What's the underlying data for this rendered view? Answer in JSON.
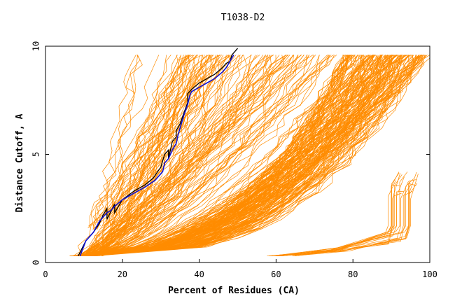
{
  "chart_data": {
    "type": "line",
    "title": "T1038-D2",
    "xlabel": "Percent of Residues (CA)",
    "ylabel": "Distance Cutoff, A",
    "xlim": [
      0,
      100
    ],
    "ylim": [
      0,
      10
    ],
    "xticks": [
      0,
      20,
      40,
      60,
      80,
      100
    ],
    "yticks": [
      0,
      5,
      10
    ],
    "grid": false,
    "colors": {
      "models": "#ff8c00",
      "highlight_a": "#000000",
      "highlight_b": "#1010d0",
      "frame": "#000000"
    },
    "highlighted_series": [
      {
        "x": [
          8.5,
          10.5,
          12.5,
          14,
          15,
          16,
          16,
          18,
          18,
          20,
          23,
          26,
          28,
          30,
          30.5,
          31,
          32,
          32,
          33,
          34,
          34,
          35,
          36,
          37,
          37,
          38,
          40,
          42,
          44,
          46,
          47,
          48,
          48.5,
          50
        ],
        "y": [
          0.3,
          1.0,
          1.4,
          1.8,
          2.2,
          2.5,
          2.0,
          2.7,
          2.3,
          2.9,
          3.3,
          3.6,
          3.9,
          4.4,
          4.7,
          5.0,
          5.2,
          4.8,
          5.6,
          5.8,
          6.1,
          6.4,
          6.9,
          7.4,
          7.8,
          8.0,
          8.3,
          8.5,
          8.7,
          9.0,
          9.2,
          9.3,
          9.6,
          9.9
        ]
      },
      {
        "x": [
          9,
          10.5,
          12.5,
          14,
          15,
          16,
          17,
          18,
          20,
          23,
          26,
          28.5,
          30.5,
          31,
          32,
          33,
          34,
          34.5,
          35,
          36,
          37,
          37.5,
          38,
          40,
          42,
          44,
          46,
          47,
          48,
          49
        ],
        "y": [
          0.3,
          1.0,
          1.4,
          1.9,
          2.1,
          2.3,
          2.4,
          2.6,
          2.9,
          3.2,
          3.5,
          3.8,
          4.2,
          4.6,
          4.8,
          5.2,
          5.5,
          5.9,
          6.2,
          6.8,
          7.3,
          7.7,
          7.9,
          8.1,
          8.3,
          8.5,
          8.8,
          9.0,
          9.3,
          9.6
        ]
      }
    ],
    "model_series_count": 320
  }
}
